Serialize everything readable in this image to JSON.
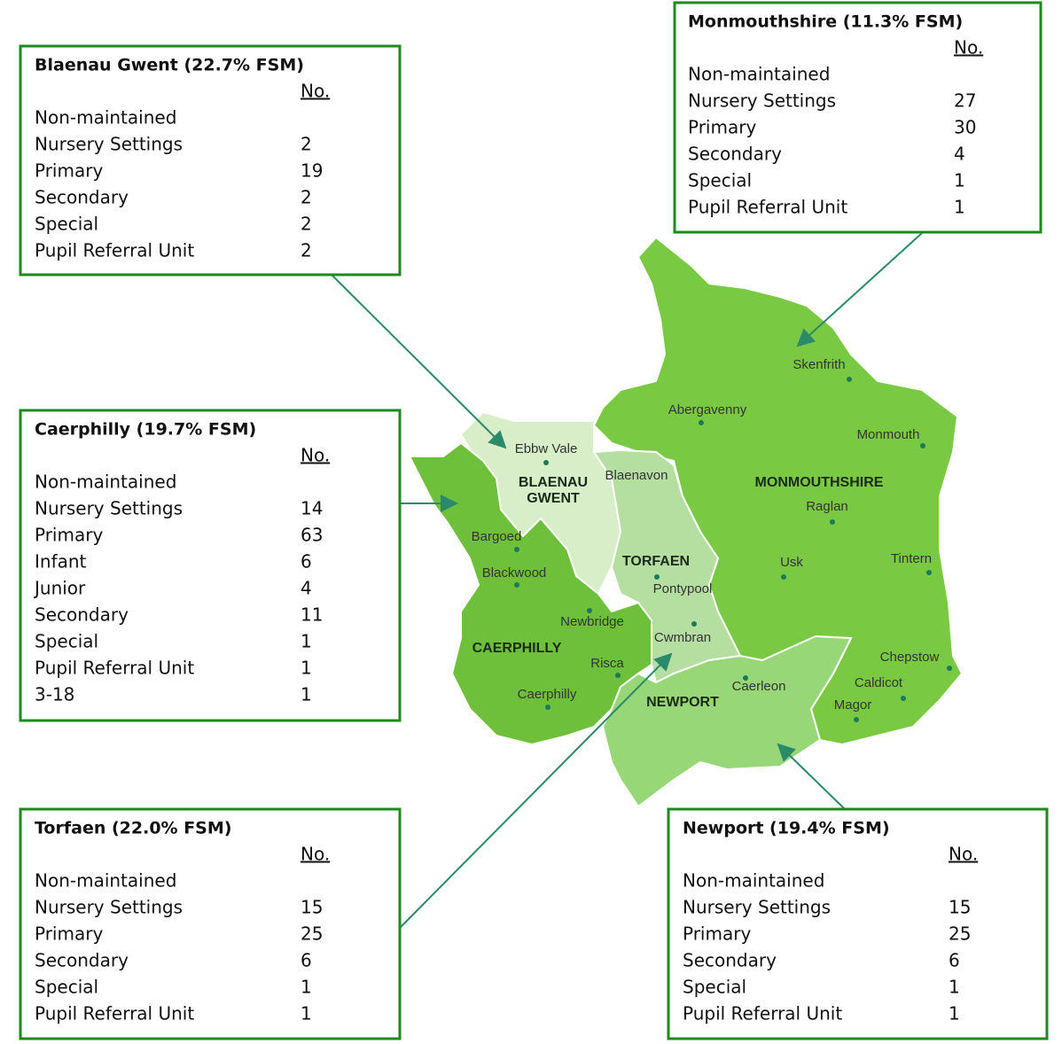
{
  "boxes": [
    {
      "title": "Blaenau Gwent (22.7% FSM)",
      "column_header": "No.",
      "rows": [
        {
          "lines": [
            "Non-maintained",
            "Nursery Settings"
          ],
          "value": 2
        },
        {
          "lines": [
            "Primary"
          ],
          "value": 19
        },
        {
          "lines": [
            "Secondary"
          ],
          "value": 2
        },
        {
          "lines": [
            "Special"
          ],
          "value": 2
        },
        {
          "lines": [
            "Pupil Referral Unit"
          ],
          "value": 2
        }
      ]
    },
    {
      "title": "Monmouthshire (11.3% FSM)",
      "column_header": "No.",
      "rows": [
        {
          "lines": [
            "Non-maintained",
            "Nursery Settings"
          ],
          "value": 27
        },
        {
          "lines": [
            "Primary"
          ],
          "value": 30
        },
        {
          "lines": [
            "Secondary"
          ],
          "value": 4
        },
        {
          "lines": [
            "Special"
          ],
          "value": 1
        },
        {
          "lines": [
            "Pupil Referral Unit"
          ],
          "value": 1
        }
      ]
    },
    {
      "title": "Caerphilly (19.7% FSM)",
      "column_header": "No.",
      "rows": [
        {
          "lines": [
            "Non-maintained",
            "Nursery Settings"
          ],
          "value": 14
        },
        {
          "lines": [
            "Primary"
          ],
          "value": 63
        },
        {
          "lines": [
            "Infant"
          ],
          "value": 6
        },
        {
          "lines": [
            "Junior"
          ],
          "value": 4
        },
        {
          "lines": [
            "Secondary"
          ],
          "value": 11
        },
        {
          "lines": [
            "Special"
          ],
          "value": 1
        },
        {
          "lines": [
            "Pupil Referral Unit"
          ],
          "value": 1
        },
        {
          "lines": [
            "3-18"
          ],
          "value": 1
        }
      ]
    },
    {
      "title": "Torfaen (22.0% FSM)",
      "column_header": "No.",
      "rows": [
        {
          "lines": [
            "Non-maintained",
            "Nursery Settings"
          ],
          "value": 15
        },
        {
          "lines": [
            "Primary"
          ],
          "value": 25
        },
        {
          "lines": [
            "Secondary"
          ],
          "value": 6
        },
        {
          "lines": [
            "Special"
          ],
          "value": 1
        },
        {
          "lines": [
            "Pupil Referral Unit"
          ],
          "value": 1
        }
      ]
    },
    {
      "title": "Newport (19.4% FSM)",
      "column_header": "No.",
      "rows": [
        {
          "lines": [
            "Non-maintained",
            "Nursery Settings"
          ],
          "value": 15
        },
        {
          "lines": [
            "Primary"
          ],
          "value": 25
        },
        {
          "lines": [
            "Secondary"
          ],
          "value": 6
        },
        {
          "lines": [
            "Special"
          ],
          "value": 1
        },
        {
          "lines": [
            "Pupil Referral Unit"
          ],
          "value": 1
        }
      ]
    }
  ],
  "map": {
    "regions": [
      {
        "lines": [
          "BLAENAU",
          "GWENT"
        ]
      },
      {
        "lines": [
          "TORFAEN"
        ]
      },
      {
        "lines": [
          "MONMOUTHSHIRE"
        ]
      },
      {
        "lines": [
          "CAERPHILLY"
        ]
      },
      {
        "lines": [
          "NEWPORT"
        ]
      }
    ],
    "towns": [
      "Ebbw Vale",
      "Blaenavon",
      "Bargoed",
      "Blackwood",
      "Newbridge",
      "Risca",
      "Caerphilly",
      "Pontypool",
      "Cwmbran",
      "Caerleon",
      "Skenfrith",
      "Abergavenny",
      "Monmouth",
      "Raglan",
      "Usk",
      "Tintern",
      "Chepstow",
      "Caldicot",
      "Magor"
    ]
  }
}
